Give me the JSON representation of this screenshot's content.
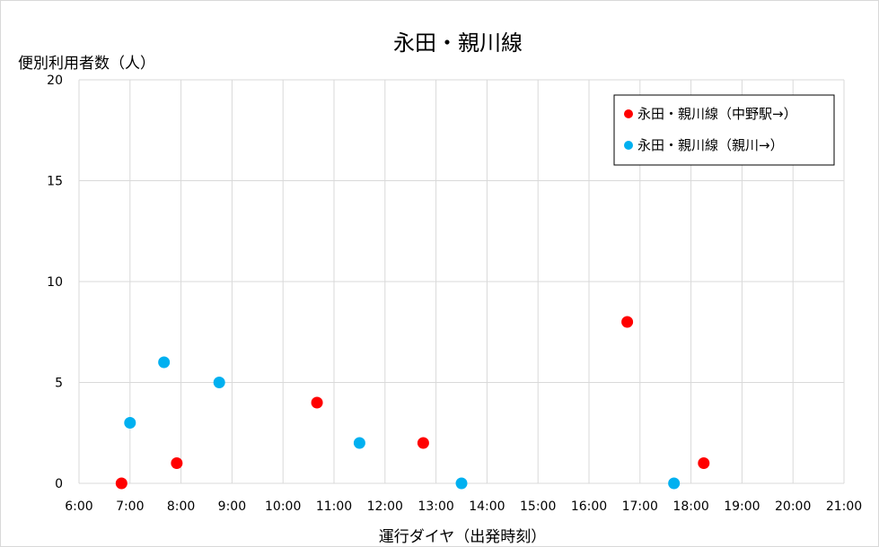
{
  "chart_data": {
    "type": "scatter",
    "title": "永田・親川線",
    "ylabel": "便別利用者数（人）",
    "xlabel": "運行ダイヤ（出発時刻）",
    "x_ticks": [
      "6:00",
      "7:00",
      "8:00",
      "9:00",
      "10:00",
      "11:00",
      "12:00",
      "13:00",
      "14:00",
      "15:00",
      "16:00",
      "17:00",
      "18:00",
      "19:00",
      "20:00",
      "21:00"
    ],
    "y_ticks": [
      "0",
      "5",
      "10",
      "15",
      "20"
    ],
    "xlim": [
      "6:00",
      "21:00"
    ],
    "ylim": [
      0,
      20
    ],
    "grid": true,
    "legend_position": "top-right",
    "series": [
      {
        "name": "永田・親川線（中野駅→）",
        "color": "#ff0000",
        "points": [
          {
            "x": "6:50",
            "y": 0
          },
          {
            "x": "7:55",
            "y": 1
          },
          {
            "x": "10:40",
            "y": 4
          },
          {
            "x": "12:45",
            "y": 2
          },
          {
            "x": "16:45",
            "y": 8
          },
          {
            "x": "18:15",
            "y": 1
          }
        ]
      },
      {
        "name": "永田・親川線（親川→）",
        "color": "#00b0f0",
        "points": [
          {
            "x": "7:00",
            "y": 3
          },
          {
            "x": "7:40",
            "y": 6
          },
          {
            "x": "8:45",
            "y": 5
          },
          {
            "x": "11:30",
            "y": 2
          },
          {
            "x": "13:30",
            "y": 0
          },
          {
            "x": "17:40",
            "y": 0
          }
        ]
      }
    ]
  }
}
